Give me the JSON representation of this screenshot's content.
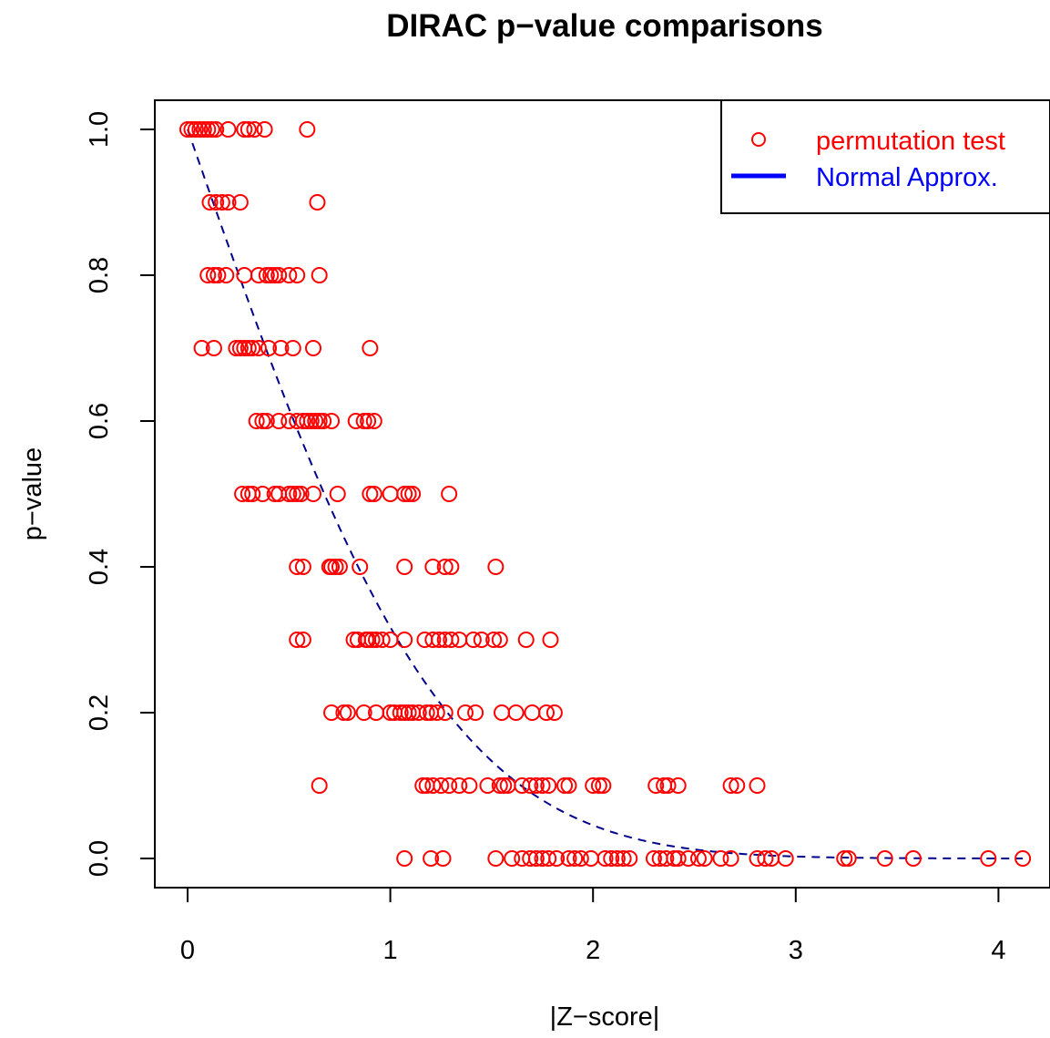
{
  "chart_data": {
    "type": "scatter",
    "title": "DIRAC p−value comparisons",
    "xlabel": "|Z−score|",
    "ylabel": "p−value",
    "xlim": [
      -0.16,
      4.25
    ],
    "ylim": [
      -0.04,
      1.04
    ],
    "xticks": [
      0,
      1,
      2,
      3,
      4
    ],
    "xtick_labels": [
      "0",
      "1",
      "2",
      "3",
      "4"
    ],
    "yticks": [
      0.0,
      0.2,
      0.4,
      0.6,
      0.8,
      1.0
    ],
    "ytick_labels": [
      "0.0",
      "0.2",
      "0.4",
      "0.6",
      "0.8",
      "1.0"
    ],
    "grid": false,
    "legend_position": "top-right",
    "legend": [
      {
        "label": "permutation test",
        "color": "#ff0000",
        "symbol": "open-circle"
      },
      {
        "label": "Normal Approx.",
        "color": "#0000ff",
        "symbol": "line"
      }
    ],
    "series": [
      {
        "name": "permutation test",
        "marker": "open-circle",
        "color": "#ff0000",
        "points": [
          [
            0.0,
            1.0
          ],
          [
            0.02,
            1.0
          ],
          [
            0.04,
            1.0
          ],
          [
            0.06,
            1.0
          ],
          [
            0.08,
            1.0
          ],
          [
            0.1,
            1.0
          ],
          [
            0.12,
            1.0
          ],
          [
            0.14,
            1.0
          ],
          [
            0.2,
            1.0
          ],
          [
            0.28,
            1.0
          ],
          [
            0.3,
            1.0
          ],
          [
            0.33,
            1.0
          ],
          [
            0.38,
            1.0
          ],
          [
            0.59,
            1.0
          ],
          [
            0.11,
            0.9
          ],
          [
            0.14,
            0.9
          ],
          [
            0.17,
            0.9
          ],
          [
            0.2,
            0.9
          ],
          [
            0.26,
            0.9
          ],
          [
            0.64,
            0.9
          ],
          [
            0.1,
            0.8
          ],
          [
            0.13,
            0.8
          ],
          [
            0.15,
            0.8
          ],
          [
            0.19,
            0.8
          ],
          [
            0.28,
            0.8
          ],
          [
            0.35,
            0.8
          ],
          [
            0.39,
            0.8
          ],
          [
            0.41,
            0.8
          ],
          [
            0.43,
            0.8
          ],
          [
            0.45,
            0.8
          ],
          [
            0.5,
            0.8
          ],
          [
            0.54,
            0.8
          ],
          [
            0.65,
            0.8
          ],
          [
            0.07,
            0.7
          ],
          [
            0.13,
            0.7
          ],
          [
            0.24,
            0.7
          ],
          [
            0.26,
            0.7
          ],
          [
            0.28,
            0.7
          ],
          [
            0.3,
            0.7
          ],
          [
            0.32,
            0.7
          ],
          [
            0.35,
            0.7
          ],
          [
            0.4,
            0.7
          ],
          [
            0.46,
            0.7
          ],
          [
            0.52,
            0.7
          ],
          [
            0.62,
            0.7
          ],
          [
            0.9,
            0.7
          ],
          [
            0.34,
            0.6
          ],
          [
            0.37,
            0.6
          ],
          [
            0.39,
            0.6
          ],
          [
            0.45,
            0.6
          ],
          [
            0.5,
            0.6
          ],
          [
            0.54,
            0.6
          ],
          [
            0.57,
            0.6
          ],
          [
            0.59,
            0.6
          ],
          [
            0.61,
            0.6
          ],
          [
            0.63,
            0.6
          ],
          [
            0.65,
            0.6
          ],
          [
            0.67,
            0.6
          ],
          [
            0.71,
            0.6
          ],
          [
            0.83,
            0.6
          ],
          [
            0.87,
            0.6
          ],
          [
            0.89,
            0.6
          ],
          [
            0.92,
            0.6
          ],
          [
            0.27,
            0.5
          ],
          [
            0.3,
            0.5
          ],
          [
            0.32,
            0.5
          ],
          [
            0.37,
            0.5
          ],
          [
            0.43,
            0.5
          ],
          [
            0.45,
            0.5
          ],
          [
            0.5,
            0.5
          ],
          [
            0.52,
            0.5
          ],
          [
            0.54,
            0.5
          ],
          [
            0.56,
            0.5
          ],
          [
            0.62,
            0.5
          ],
          [
            0.74,
            0.5
          ],
          [
            0.9,
            0.5
          ],
          [
            0.92,
            0.5
          ],
          [
            1.0,
            0.5
          ],
          [
            1.07,
            0.5
          ],
          [
            1.09,
            0.5
          ],
          [
            1.11,
            0.5
          ],
          [
            1.29,
            0.5
          ],
          [
            0.54,
            0.4
          ],
          [
            0.57,
            0.4
          ],
          [
            0.7,
            0.4
          ],
          [
            0.71,
            0.4
          ],
          [
            0.73,
            0.4
          ],
          [
            0.75,
            0.4
          ],
          [
            0.85,
            0.4
          ],
          [
            1.07,
            0.4
          ],
          [
            1.21,
            0.4
          ],
          [
            1.27,
            0.4
          ],
          [
            1.3,
            0.4
          ],
          [
            1.52,
            0.4
          ],
          [
            0.54,
            0.3
          ],
          [
            0.57,
            0.3
          ],
          [
            0.82,
            0.3
          ],
          [
            0.84,
            0.3
          ],
          [
            0.88,
            0.3
          ],
          [
            0.89,
            0.3
          ],
          [
            0.91,
            0.3
          ],
          [
            0.93,
            0.3
          ],
          [
            0.96,
            0.3
          ],
          [
            1.0,
            0.3
          ],
          [
            1.07,
            0.3
          ],
          [
            1.17,
            0.3
          ],
          [
            1.21,
            0.3
          ],
          [
            1.24,
            0.3
          ],
          [
            1.27,
            0.3
          ],
          [
            1.3,
            0.3
          ],
          [
            1.34,
            0.3
          ],
          [
            1.41,
            0.3
          ],
          [
            1.45,
            0.3
          ],
          [
            1.51,
            0.3
          ],
          [
            1.54,
            0.3
          ],
          [
            1.67,
            0.3
          ],
          [
            1.79,
            0.3
          ],
          [
            0.71,
            0.2
          ],
          [
            0.77,
            0.2
          ],
          [
            0.79,
            0.2
          ],
          [
            0.87,
            0.2
          ],
          [
            0.93,
            0.2
          ],
          [
            1.0,
            0.2
          ],
          [
            1.02,
            0.2
          ],
          [
            1.05,
            0.2
          ],
          [
            1.07,
            0.2
          ],
          [
            1.09,
            0.2
          ],
          [
            1.11,
            0.2
          ],
          [
            1.14,
            0.2
          ],
          [
            1.18,
            0.2
          ],
          [
            1.2,
            0.2
          ],
          [
            1.23,
            0.2
          ],
          [
            1.27,
            0.2
          ],
          [
            1.37,
            0.2
          ],
          [
            1.42,
            0.2
          ],
          [
            1.55,
            0.2
          ],
          [
            1.62,
            0.2
          ],
          [
            1.7,
            0.2
          ],
          [
            1.77,
            0.2
          ],
          [
            1.81,
            0.2
          ],
          [
            0.65,
            0.1
          ],
          [
            1.16,
            0.1
          ],
          [
            1.18,
            0.1
          ],
          [
            1.21,
            0.1
          ],
          [
            1.25,
            0.1
          ],
          [
            1.29,
            0.1
          ],
          [
            1.34,
            0.1
          ],
          [
            1.39,
            0.1
          ],
          [
            1.48,
            0.1
          ],
          [
            1.54,
            0.1
          ],
          [
            1.56,
            0.1
          ],
          [
            1.58,
            0.1
          ],
          [
            1.65,
            0.1
          ],
          [
            1.69,
            0.1
          ],
          [
            1.72,
            0.1
          ],
          [
            1.75,
            0.1
          ],
          [
            1.78,
            0.1
          ],
          [
            1.86,
            0.1
          ],
          [
            1.88,
            0.1
          ],
          [
            2.0,
            0.1
          ],
          [
            2.03,
            0.1
          ],
          [
            2.05,
            0.1
          ],
          [
            2.31,
            0.1
          ],
          [
            2.35,
            0.1
          ],
          [
            2.37,
            0.1
          ],
          [
            2.42,
            0.1
          ],
          [
            2.68,
            0.1
          ],
          [
            2.71,
            0.1
          ],
          [
            2.81,
            0.1
          ],
          [
            1.07,
            0.0
          ],
          [
            1.2,
            0.0
          ],
          [
            1.26,
            0.0
          ],
          [
            1.52,
            0.0
          ],
          [
            1.6,
            0.0
          ],
          [
            1.65,
            0.0
          ],
          [
            1.69,
            0.0
          ],
          [
            1.72,
            0.0
          ],
          [
            1.75,
            0.0
          ],
          [
            1.78,
            0.0
          ],
          [
            1.82,
            0.0
          ],
          [
            1.88,
            0.0
          ],
          [
            1.91,
            0.0
          ],
          [
            1.94,
            0.0
          ],
          [
            1.99,
            0.0
          ],
          [
            2.06,
            0.0
          ],
          [
            2.09,
            0.0
          ],
          [
            2.12,
            0.0
          ],
          [
            2.15,
            0.0
          ],
          [
            2.18,
            0.0
          ],
          [
            2.3,
            0.0
          ],
          [
            2.33,
            0.0
          ],
          [
            2.36,
            0.0
          ],
          [
            2.4,
            0.0
          ],
          [
            2.42,
            0.0
          ],
          [
            2.47,
            0.0
          ],
          [
            2.52,
            0.0
          ],
          [
            2.55,
            0.0
          ],
          [
            2.63,
            0.0
          ],
          [
            2.68,
            0.0
          ],
          [
            2.81,
            0.0
          ],
          [
            2.85,
            0.0
          ],
          [
            2.88,
            0.0
          ],
          [
            2.95,
            0.0
          ],
          [
            3.24,
            0.0
          ],
          [
            3.26,
            0.0
          ],
          [
            3.44,
            0.0
          ],
          [
            3.58,
            0.0
          ],
          [
            3.95,
            0.0
          ],
          [
            4.12,
            0.0
          ]
        ]
      },
      {
        "name": "Normal Approx.",
        "marker": "dashed-line",
        "color": "#00008b",
        "x_range": [
          0,
          4.12
        ],
        "formula": "2*(1 - pnorm(|z|))"
      }
    ]
  }
}
